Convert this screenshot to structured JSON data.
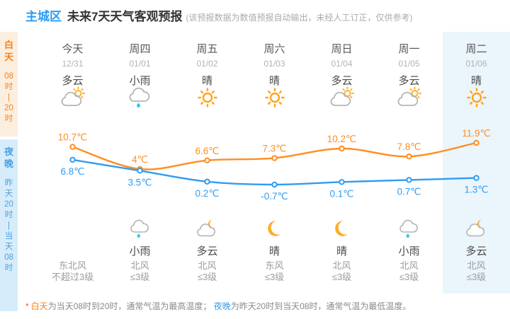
{
  "header": {
    "region": "主城区",
    "title": "未来7天天气客观预报",
    "disclaimer": "(该预报数据为数值预报自动输出，未经人工订正，仅供参考)"
  },
  "sidebar": {
    "day": {
      "label_chars": [
        "白",
        "天"
      ],
      "time_tokens": [
        "08",
        "时",
        "|",
        "20",
        "时"
      ]
    },
    "night": {
      "label_chars": [
        "夜",
        "晚"
      ],
      "time_tokens": [
        "昨",
        "天",
        "20",
        "时",
        "|",
        "当",
        "天",
        "08",
        "时"
      ]
    }
  },
  "columns": [
    {
      "day": "今天",
      "date": "12/31",
      "day_weather": "多云",
      "day_icon": "cloud-sun",
      "night_weather": "",
      "night_icon": "",
      "wind": [
        "东北风",
        "不超过3级"
      ],
      "highlighted": false
    },
    {
      "day": "周四",
      "date": "01/01",
      "day_weather": "小雨",
      "day_icon": "cloud-rain",
      "night_weather": "小雨",
      "night_icon": "cloud-rain",
      "wind": [
        "北风",
        "≤3级"
      ],
      "highlighted": false
    },
    {
      "day": "周五",
      "date": "01/02",
      "day_weather": "晴",
      "day_icon": "sun",
      "night_weather": "多云",
      "night_icon": "cloud-moon",
      "wind": [
        "北风",
        "≤3级"
      ],
      "highlighted": false
    },
    {
      "day": "周六",
      "date": "01/03",
      "day_weather": "晴",
      "day_icon": "sun",
      "night_weather": "晴",
      "night_icon": "moon",
      "wind": [
        "东风",
        "≤3级"
      ],
      "highlighted": false
    },
    {
      "day": "周日",
      "date": "01/04",
      "day_weather": "多云",
      "day_icon": "cloud-sun",
      "night_weather": "晴",
      "night_icon": "moon",
      "wind": [
        "北风",
        "≤3级"
      ],
      "highlighted": false
    },
    {
      "day": "周一",
      "date": "01/05",
      "day_weather": "多云",
      "day_icon": "cloud-sun",
      "night_weather": "小雨",
      "night_icon": "cloud-rain",
      "wind": [
        "北风",
        "≤3级"
      ],
      "highlighted": false
    },
    {
      "day": "周二",
      "date": "01/06",
      "day_weather": "晴",
      "day_icon": "sun",
      "night_weather": "多云",
      "night_icon": "cloud-moon",
      "wind": [
        "北风",
        "≤3级"
      ],
      "highlighted": true
    }
  ],
  "chart_data": {
    "type": "line",
    "categories": [
      "今天 12/31",
      "周四 01/01",
      "周五 01/02",
      "周六 01/03",
      "周日 01/04",
      "周一 01/05",
      "周二 01/06"
    ],
    "series": [
      {
        "name": "白天(最高温度)",
        "color": "#FF8E1F",
        "values": [
          10.7,
          4,
          6.6,
          7.3,
          10.2,
          7.8,
          11.9
        ],
        "labels": [
          "10.7℃",
          "4℃",
          "6.6℃",
          "7.3℃",
          "10.2℃",
          "7.8℃",
          "11.9℃"
        ]
      },
      {
        "name": "夜晚(最低温度)",
        "color": "#2E9CF3",
        "values": [
          6.8,
          3.5,
          0.2,
          -0.7,
          0.1,
          0.7,
          1.3
        ],
        "labels": [
          "6.8℃",
          "3.5℃",
          "0.2℃",
          "-0.7℃",
          "0.1℃",
          "0.7℃",
          "1.3℃"
        ]
      }
    ],
    "unit": "℃",
    "ylim": [
      -0.7,
      11.9
    ],
    "grid": false,
    "legend": "none"
  },
  "footnote": {
    "star": "*",
    "day_term": "白天",
    "day_text": "为当天08时到20时，通常气温为最高温度； ",
    "night_term": "夜晚",
    "night_text": "为昨天20时到当天08时，通常气温为最低温度。"
  },
  "colors": {
    "accent_blue": "#2B9AF3",
    "accent_orange": "#F58220",
    "high_line": "#FF8E1F",
    "low_line": "#2E9CF3",
    "day_strip_bg": "#FCEEDE",
    "night_strip_bg": "#D7ECFA",
    "highlight_col_bg": "#EBF5FC",
    "rain_drop": "#2CC3F4",
    "moon": "#FFAD26"
  }
}
